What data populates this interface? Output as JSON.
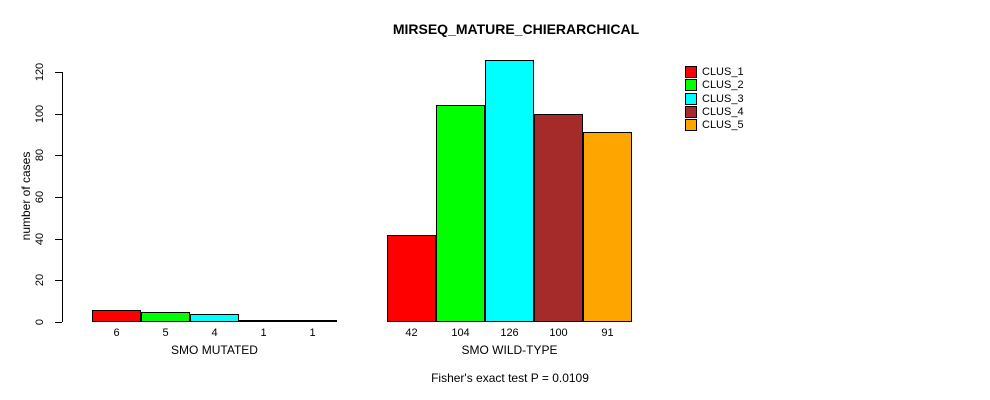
{
  "chart_data": {
    "type": "bar",
    "title": "MIRSEQ_MATURE_CHIERARCHICAL",
    "ylabel": "number of cases",
    "xlabel": "",
    "ylim": [
      0,
      126
    ],
    "yticks": [
      0,
      20,
      40,
      60,
      80,
      100,
      120
    ],
    "grid": false,
    "legend_position": "right",
    "categories": [
      "SMO MUTATED",
      "SMO WILD-TYPE"
    ],
    "series": [
      {
        "name": "CLUS_1",
        "color": "#FF0000",
        "values": [
          6,
          42
        ]
      },
      {
        "name": "CLUS_2",
        "color": "#00FF00",
        "values": [
          5,
          104
        ]
      },
      {
        "name": "CLUS_3",
        "color": "#00FFFF",
        "values": [
          4,
          126
        ]
      },
      {
        "name": "CLUS_4",
        "color": "#A52A2A",
        "values": [
          1,
          100
        ]
      },
      {
        "name": "CLUS_5",
        "color": "#FFA500",
        "values": [
          1,
          91
        ]
      }
    ],
    "annotation": "Fisher's exact test P = 0.0109",
    "text_color": "#000000",
    "background_color": "#FFFFFF"
  }
}
